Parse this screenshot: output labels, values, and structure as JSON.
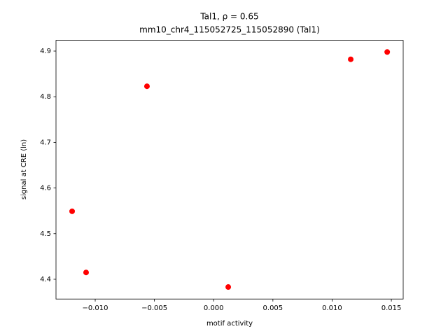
{
  "chart_data": {
    "type": "scatter",
    "title": "Tal1, ρ = 0.65",
    "subtitle": "mm10_chr4_115052725_115052890 (Tal1)",
    "x_label": "motif activity",
    "y_label": "signal at CRE (ln)",
    "series": [
      {
        "color": "#ff0000",
        "x": [
          -0.01195,
          -0.01077,
          -0.00563,
          0.00123,
          0.01157,
          0.01465
        ],
        "values": [
          4.549,
          4.415,
          4.823,
          4.383,
          4.882,
          4.898
        ]
      }
    ],
    "xlim": [
      -0.01331,
      0.016
    ],
    "ylim": [
      4.3567,
      4.9236
    ],
    "xticks": [
      {
        "value": -0.01,
        "label": "−0.010"
      },
      {
        "value": -0.005,
        "label": "−0.005"
      },
      {
        "value": 0,
        "label": "0.000"
      },
      {
        "value": 0.005,
        "label": "0.005"
      },
      {
        "value": 0.01,
        "label": "0.010"
      },
      {
        "value": 0.015,
        "label": "0.015"
      }
    ],
    "yticks": [
      4.4,
      4.5,
      4.6,
      4.7,
      4.8,
      4.9
    ],
    "grid": false
  }
}
